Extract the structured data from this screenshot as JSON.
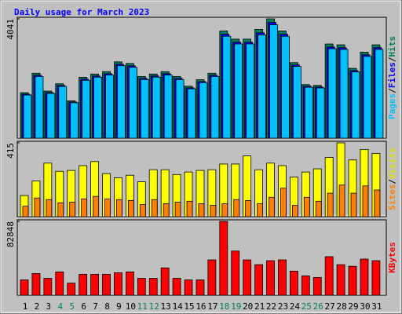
{
  "title": "Daily usage for March 2023",
  "separator": "/",
  "chart_data": [
    {
      "type": "bar",
      "ylim": [
        0,
        4041
      ],
      "yticks": [
        4041
      ],
      "series": [
        {
          "name": "Hits",
          "color": "#00805c",
          "values": [
            1539,
            2199,
            1594,
            1842,
            1265,
            2062,
            2172,
            2254,
            2584,
            2529,
            2089,
            2172,
            2254,
            2089,
            1759,
            1979,
            2199,
            3629,
            3354,
            3354,
            3684,
            4041,
            3629,
            2557,
            1814,
            1787,
            3189,
            3161,
            2364,
            2914,
            3161
          ]
        },
        {
          "name": "Files",
          "color": "#0000ff",
          "values": [
            1490,
            2130,
            1545,
            1785,
            1225,
            2000,
            2105,
            2185,
            2505,
            2450,
            2025,
            2105,
            2185,
            2025,
            1705,
            1918,
            2130,
            3520,
            3250,
            3250,
            3570,
            3920,
            3520,
            2480,
            1760,
            1733,
            3090,
            3065,
            2290,
            2825,
            3065
          ]
        },
        {
          "name": "Pages",
          "color": "#00c0ff",
          "values": [
            1460,
            2090,
            1515,
            1750,
            1200,
            1960,
            2065,
            2140,
            2455,
            2400,
            1985,
            2065,
            2140,
            1985,
            1670,
            1880,
            2090,
            3450,
            3190,
            3190,
            3500,
            3840,
            3450,
            2430,
            1725,
            1700,
            3030,
            3005,
            2245,
            2770,
            3005
          ]
        }
      ]
    },
    {
      "type": "bar",
      "ylim": [
        0,
        415
      ],
      "yticks": [
        415
      ],
      "series": [
        {
          "name": "Visits",
          "color": "#ffff00",
          "values": [
            119,
            201,
            301,
            255,
            260,
            287,
            310,
            242,
            219,
            233,
            196,
            264,
            264,
            237,
            251,
            260,
            264,
            296,
            296,
            342,
            264,
            301,
            287,
            223,
            251,
            269,
            333,
            415,
            319,
            378,
            356
          ]
        },
        {
          "name": "Sites",
          "color": "#ff8000",
          "values": [
            59,
            105,
            96,
            78,
            82,
            100,
            114,
            100,
            96,
            91,
            68,
            96,
            73,
            82,
            87,
            73,
            64,
            73,
            96,
            91,
            73,
            109,
            160,
            64,
            109,
            87,
            132,
            178,
            132,
            173,
            150
          ]
        }
      ]
    },
    {
      "type": "bar",
      "ylim": [
        0,
        82848
      ],
      "yticks": [
        82848
      ],
      "categories": [
        "1",
        "2",
        "3",
        "4",
        "5",
        "6",
        "7",
        "8",
        "9",
        "10",
        "11",
        "12",
        "13",
        "14",
        "15",
        "16",
        "17",
        "18",
        "19",
        "20",
        "21",
        "22",
        "23",
        "24",
        "25",
        "26",
        "27",
        "28",
        "29",
        "30",
        "31"
      ],
      "category_colors": [
        "#000000",
        "#000000",
        "#000000",
        "#00805c",
        "#00805c",
        "#000000",
        "#000000",
        "#000000",
        "#000000",
        "#000000",
        "#00805c",
        "#00805c",
        "#000000",
        "#000000",
        "#000000",
        "#000000",
        "#000000",
        "#00805c",
        "#00805c",
        "#000000",
        "#000000",
        "#000000",
        "#000000",
        "#000000",
        "#00805c",
        "#00805c",
        "#000000",
        "#000000",
        "#000000",
        "#000000",
        "#000000"
      ],
      "series": [
        {
          "name": "KBytes",
          "color": "#ff0000",
          "values": [
            17110,
            24314,
            18911,
            26115,
            13508,
            23413,
            23413,
            23413,
            25214,
            26115,
            18911,
            18911,
            30617,
            18911,
            17110,
            17110,
            39622,
            82848,
            49528,
            39622,
            34219,
            38722,
            39622,
            27015,
            21612,
            19811,
            43224,
            34219,
            32418,
            40523,
            38722
          ]
        }
      ]
    }
  ]
}
